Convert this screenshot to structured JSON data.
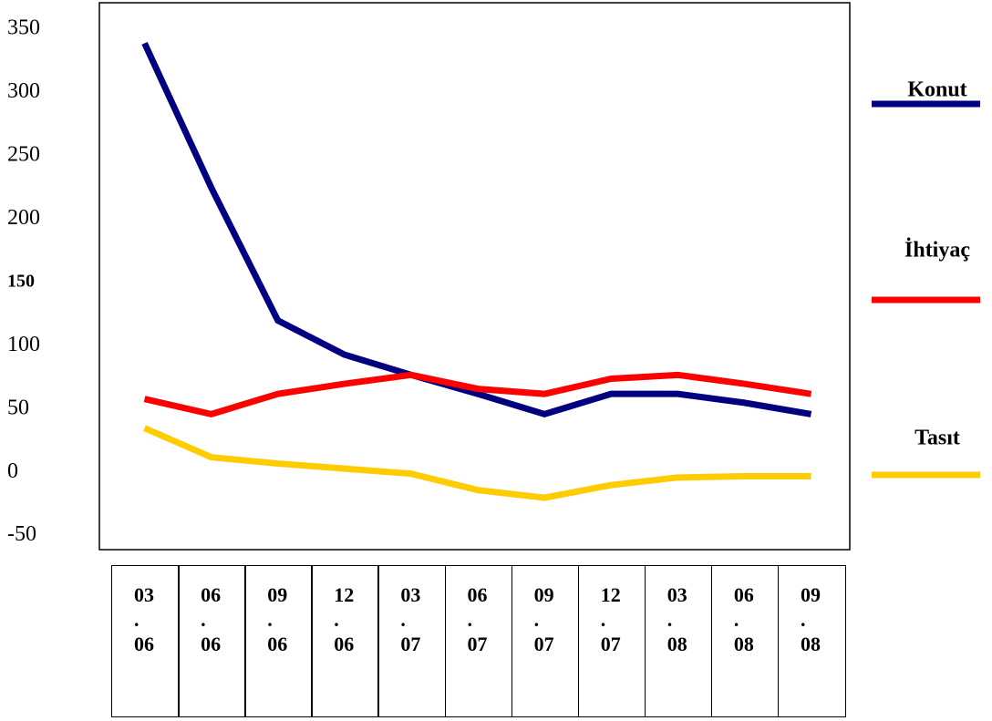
{
  "chart_data": {
    "type": "line",
    "categories": [
      "03\n.\n06",
      "06\n.\n06",
      "09\n.\n06",
      "12\n.\n06",
      "03\n.\n07",
      "06\n.\n07",
      "09\n.\n07",
      "12\n.\n07",
      "03\n.\n08",
      "06\n.\n08",
      "09\n.\n08"
    ],
    "series": [
      {
        "name": "Konut",
        "color": "#000080",
        "values": [
          339,
          225,
          120,
          93,
          77,
          62,
          46,
          62,
          62,
          55,
          46
        ]
      },
      {
        "name": "İhtiyaç",
        "color": "#ff0000",
        "values": [
          58,
          46,
          62,
          70,
          77,
          66,
          62,
          74,
          77,
          70,
          62
        ]
      },
      {
        "name": "Tasıt",
        "color": "#ffcc00",
        "values": [
          35,
          12,
          7,
          3,
          -1,
          -14,
          -20,
          -10,
          -4,
          -3,
          -3
        ]
      }
    ],
    "ylim": [
      -61,
      371
    ],
    "yticks": [
      -50,
      0,
      50,
      100,
      150,
      200,
      250,
      300,
      350
    ],
    "legend": "right"
  }
}
